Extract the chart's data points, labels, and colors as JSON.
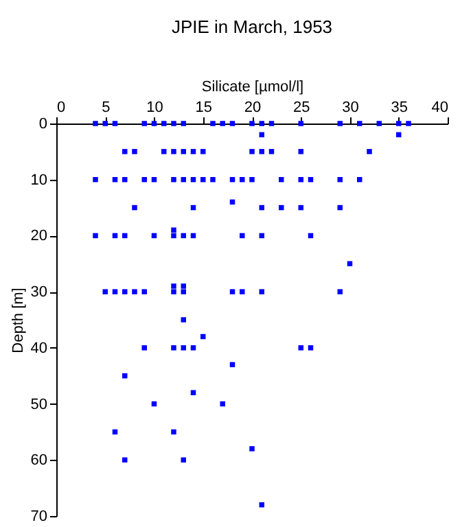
{
  "chart_data": {
    "type": "scatter",
    "title": "JPIE in March, 1953",
    "xlabel": "Silicate [µmol/l]",
    "ylabel": "Depth [m]",
    "x": [
      4,
      5,
      6,
      9,
      10,
      11,
      12,
      13,
      16,
      17,
      18,
      20,
      21,
      22,
      25,
      29,
      31,
      33,
      35,
      36,
      21,
      35,
      7,
      8,
      11,
      12,
      13,
      14,
      15,
      20,
      21,
      22,
      25,
      32,
      4,
      6,
      7,
      9,
      10,
      12,
      13,
      14,
      15,
      16,
      18,
      19,
      20,
      23,
      25,
      26,
      29,
      31,
      18,
      8,
      14,
      21,
      23,
      25,
      29,
      12,
      4,
      6,
      7,
      10,
      12,
      13,
      14,
      19,
      21,
      26,
      30,
      12,
      13,
      5,
      6,
      7,
      8,
      9,
      12,
      13,
      18,
      19,
      21,
      29,
      13,
      15,
      9,
      12,
      13,
      14,
      25,
      26,
      18,
      7,
      14,
      10,
      17,
      6,
      12,
      20,
      7,
      13,
      21
    ],
    "values": [
      0,
      0,
      0,
      0,
      0,
      0,
      0,
      0,
      0,
      0,
      0,
      0,
      0,
      0,
      0,
      0,
      0,
      0,
      0,
      0,
      2,
      2,
      5,
      5,
      5,
      5,
      5,
      5,
      5,
      5,
      5,
      5,
      5,
      5,
      10,
      10,
      10,
      10,
      10,
      10,
      10,
      10,
      10,
      10,
      10,
      10,
      10,
      10,
      10,
      10,
      10,
      10,
      14,
      15,
      15,
      15,
      15,
      15,
      15,
      19,
      20,
      20,
      20,
      20,
      20,
      20,
      20,
      20,
      20,
      20,
      25,
      29,
      29,
      30,
      30,
      30,
      30,
      30,
      30,
      30,
      30,
      30,
      30,
      30,
      35,
      38,
      40,
      40,
      40,
      40,
      40,
      40,
      43,
      45,
      48,
      50,
      50,
      55,
      55,
      58,
      60,
      60,
      68
    ],
    "color": "#0000ff",
    "marker": "square",
    "xlim": [
      0,
      40
    ],
    "xticks": [
      0,
      5,
      10,
      15,
      20,
      25,
      30,
      35,
      40
    ],
    "ylim": [
      70,
      0
    ],
    "yticks": [
      0,
      10,
      20,
      30,
      40,
      50,
      60,
      70
    ],
    "grid": false
  }
}
